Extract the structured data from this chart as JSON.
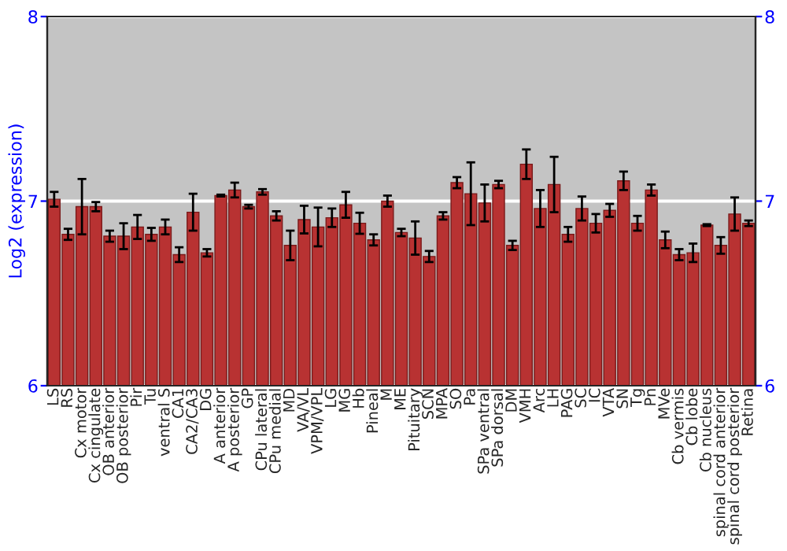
{
  "chart_data": {
    "type": "bar",
    "ylabel": "Log2 (expression)",
    "categories": [
      "LS",
      "RS",
      "Cx motor",
      "Cx cingulate",
      "OB anterior",
      "OB posterior",
      "Pir",
      "Tu",
      "ventral S",
      "CA1",
      "CA2/CA3",
      "DG",
      "A anterior",
      "A posterior",
      "GP",
      "CPu lateral",
      "CPu medial",
      "MD",
      "VA/VL",
      "VPM/VPL",
      "LG",
      "MG",
      "Hb",
      "Pineal",
      "M",
      "ME",
      "Pituitary",
      "SCN",
      "MPA",
      "SO",
      "Pa",
      "SPa ventral",
      "SPa dorsal",
      "DM",
      "VMH",
      "Arc",
      "LH",
      "PAG",
      "SC",
      "IC",
      "VTA",
      "SN",
      "Tg",
      "Pn",
      "MVe",
      "Cb vermis",
      "Cb lobe",
      "Cb nucleus",
      "spinal cord anterior",
      "spinal cord posterior",
      "Retina"
    ],
    "values": [
      7.01,
      6.82,
      6.97,
      6.97,
      6.81,
      6.81,
      6.86,
      6.82,
      6.86,
      6.71,
      6.94,
      6.72,
      7.03,
      7.06,
      6.97,
      7.05,
      6.92,
      6.76,
      6.9,
      6.86,
      6.91,
      6.98,
      6.88,
      6.79,
      7.0,
      6.83,
      6.8,
      6.7,
      6.92,
      7.1,
      7.04,
      6.99,
      7.09,
      6.76,
      7.2,
      6.96,
      7.09,
      6.82,
      6.96,
      6.88,
      6.95,
      7.11,
      6.88,
      7.06,
      6.79,
      6.71,
      6.72,
      6.87,
      6.76,
      6.93,
      6.88
    ],
    "errors": [
      0.04,
      0.03,
      0.15,
      0.025,
      0.03,
      0.07,
      0.065,
      0.035,
      0.04,
      0.04,
      0.1,
      0.02,
      0.005,
      0.04,
      0.01,
      0.015,
      0.025,
      0.08,
      0.075,
      0.105,
      0.05,
      0.07,
      0.057,
      0.03,
      0.03,
      0.02,
      0.09,
      0.03,
      0.02,
      0.03,
      0.17,
      0.1,
      0.02,
      0.025,
      0.08,
      0.1,
      0.15,
      0.04,
      0.065,
      0.05,
      0.035,
      0.05,
      0.04,
      0.03,
      0.045,
      0.03,
      0.05,
      0.005,
      0.045,
      0.09,
      0.015
    ],
    "color": "#b83232",
    "ylim": [
      6,
      8
    ],
    "yticks": [
      6,
      7,
      8
    ],
    "y2lim": [
      6,
      8
    ],
    "y2ticks": [
      6,
      7,
      8
    ],
    "grid": "y"
  }
}
